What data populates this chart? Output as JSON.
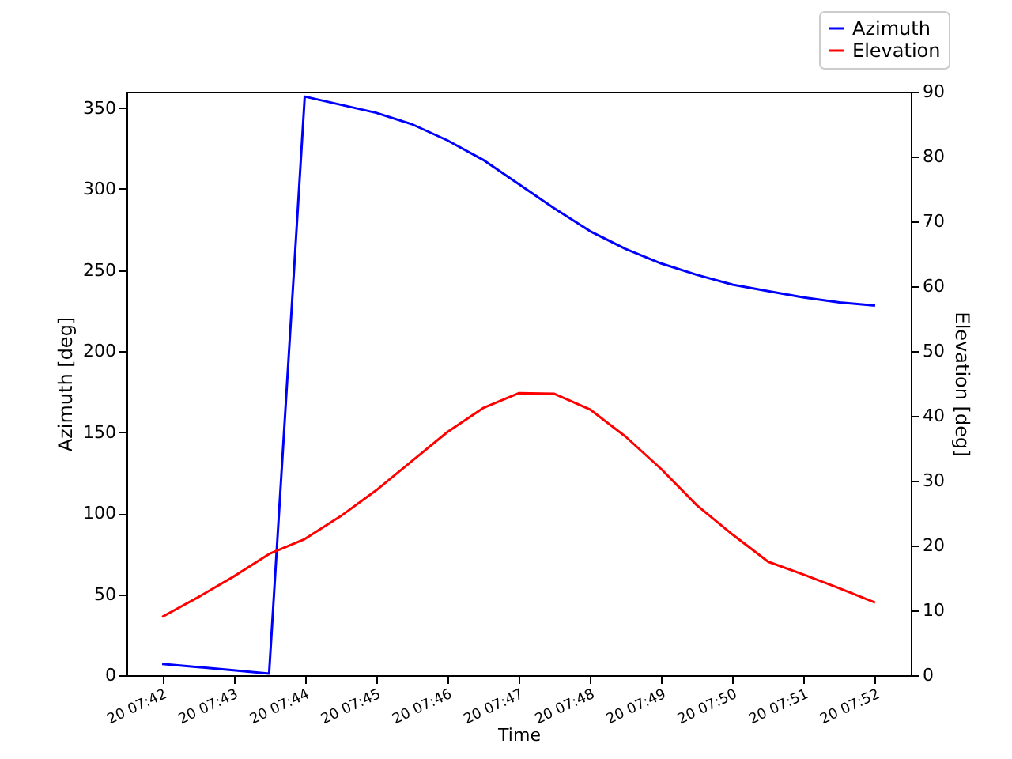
{
  "chart_data": {
    "type": "line",
    "xlabel": "Time",
    "ylabel": "Azimuth [deg]",
    "y2label": "Elevation [deg]",
    "categories": [
      "20 07:42",
      null,
      "20 07:43",
      null,
      "20 07:44",
      null,
      "20 07:45",
      null,
      "20 07:46",
      null,
      "20 07:47",
      null,
      "20 07:48",
      null,
      "20 07:49",
      null,
      "20 07:50",
      null,
      "20 07:51",
      null,
      "20 07:52"
    ],
    "series": [
      {
        "name": "Azimuth",
        "color": "#0000ff",
        "values": [
          7,
          5,
          3,
          1,
          357,
          352,
          347,
          340,
          330,
          318,
          303,
          288,
          274,
          263,
          254,
          247,
          241,
          237,
          233,
          230,
          228
        ]
      },
      {
        "name": "Elevation",
        "color": "#ff0000",
        "axis": "y2",
        "values": [
          9,
          12,
          15.2,
          18.7,
          21,
          24.5,
          28.5,
          33,
          37.5,
          41.2,
          43.5,
          43.4,
          41,
          36.8,
          31.8,
          26.2,
          21.7,
          17.5,
          15.5,
          13.4,
          11.2
        ]
      }
    ],
    "ylim": [
      0,
      360
    ],
    "yticks": [
      0,
      50,
      100,
      150,
      200,
      250,
      300,
      350
    ],
    "y2lim": [
      0,
      90
    ],
    "y2ticks": [
      0,
      10,
      20,
      30,
      40,
      50,
      60,
      70,
      80,
      90
    ],
    "legend": "top right",
    "grid": false
  }
}
